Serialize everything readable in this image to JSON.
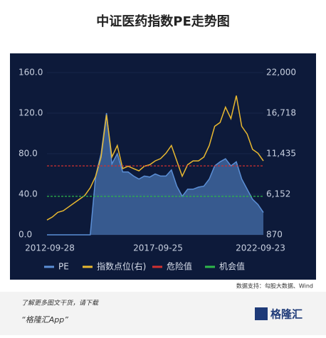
{
  "chart_data": {
    "type": "line",
    "title": "中证医药指数PE走势图",
    "categories": [
      "2012-09-28",
      null,
      null,
      null,
      null,
      null,
      null,
      null,
      null,
      null,
      null,
      null,
      null,
      null,
      null,
      null,
      null,
      null,
      null,
      null,
      "2017-09-25",
      null,
      null,
      null,
      null,
      null,
      null,
      null,
      null,
      null,
      null,
      null,
      null,
      null,
      null,
      null,
      null,
      null,
      null,
      null,
      "2022-09-23"
    ],
    "series": [
      {
        "name": "PE",
        "color": "#5b8fd6",
        "values": [
          0,
          0,
          0,
          0,
          0,
          0,
          0,
          0,
          0,
          58,
          80,
          120,
          70,
          80,
          62,
          62,
          58,
          55,
          58,
          57,
          60,
          58,
          58,
          64,
          48,
          38,
          45,
          45,
          47,
          48,
          55,
          68,
          72,
          75,
          68,
          72,
          55,
          45,
          35,
          30,
          22
        ]
      },
      {
        "name": "指数点位(右)",
        "color": "#e8b830",
        "axis": "y2",
        "values": [
          2800,
          3200,
          3800,
          4000,
          4500,
          5000,
          5500,
          6000,
          7000,
          8500,
          11000,
          16500,
          11000,
          12500,
          9500,
          9800,
          9500,
          9200,
          9800,
          10000,
          10500,
          10800,
          11500,
          12500,
          10500,
          8500,
          10000,
          10500,
          10500,
          11000,
          12500,
          15000,
          15500,
          17500,
          16000,
          19000,
          15000,
          14000,
          12000,
          11500,
          10500
        ]
      },
      {
        "name": "危险值",
        "color": "#d03030",
        "value": 68
      },
      {
        "name": "机会值",
        "color": "#2fb84a",
        "value": 38
      }
    ],
    "ylim": [
      0,
      160
    ],
    "yticks": [
      {
        "value": 0,
        "label": "0.0"
      },
      {
        "value": 40,
        "label": "40.0"
      },
      {
        "value": 80,
        "label": "80.0"
      },
      {
        "value": 120,
        "label": "120.0"
      },
      {
        "value": 160,
        "label": "160.0"
      }
    ],
    "y2lim": [
      870,
      22000
    ],
    "y2ticks": [
      870,
      {
        "value": 6152,
        "label": "6,152"
      },
      {
        "value": 11435,
        "label": "11,435"
      },
      {
        "value": 16718,
        "label": "16,718"
      },
      {
        "value": 22000,
        "label": "22,000"
      }
    ],
    "grid": true,
    "legend": "bottom",
    "source": "数据支持：勾股大数据、Wind"
  },
  "footer": {
    "line1": "了解更多图文干货，请下载",
    "line2": "“格隆汇App”",
    "logo": "格隆汇"
  }
}
